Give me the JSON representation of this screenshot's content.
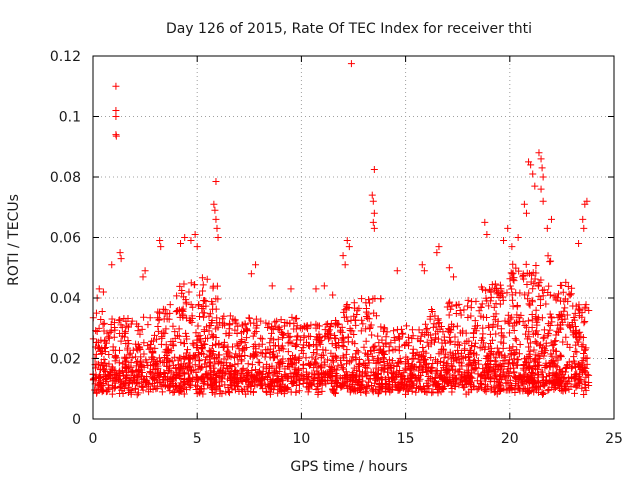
{
  "chart_data": {
    "type": "scatter",
    "title": "Day 126 of 2015, Rate Of TEC Index for receiver thti",
    "xlabel": "GPS time / hours",
    "ylabel": "ROTI / TECUs",
    "xlim": [
      0,
      25
    ],
    "ylim": [
      0,
      0.12
    ],
    "xticks": [
      0,
      5,
      10,
      15,
      20,
      25
    ],
    "yticks": [
      0,
      0.02,
      0.04,
      0.06,
      0.08,
      0.1,
      0.12
    ],
    "xtick_labels": [
      "0",
      "5",
      "10",
      "15",
      "20",
      "25"
    ],
    "ytick_labels": [
      "0",
      "0.02",
      "0.04",
      "0.06",
      "0.08",
      "0.1",
      "0.12"
    ],
    "grid": true,
    "marker": "+",
    "color": "#ff0000",
    "series": [
      {
        "name": "ROTI",
        "points": [
          [
            1.1,
            0.11
          ],
          [
            1.1,
            0.102
          ],
          [
            1.1,
            0.1
          ],
          [
            1.1,
            0.094
          ],
          [
            1.12,
            0.0935
          ],
          [
            12.4,
            0.1175
          ],
          [
            5.9,
            0.0785
          ],
          [
            13.5,
            0.0825
          ],
          [
            13.4,
            0.074
          ],
          [
            13.45,
            0.072
          ],
          [
            13.5,
            0.068
          ],
          [
            13.45,
            0.065
          ],
          [
            13.5,
            0.063
          ],
          [
            5.8,
            0.071
          ],
          [
            5.85,
            0.069
          ],
          [
            5.9,
            0.066
          ],
          [
            5.95,
            0.063
          ],
          [
            6.0,
            0.06
          ],
          [
            20.9,
            0.085
          ],
          [
            21.0,
            0.084
          ],
          [
            21.4,
            0.088
          ],
          [
            21.5,
            0.086
          ],
          [
            21.55,
            0.083
          ],
          [
            21.6,
            0.08
          ],
          [
            21.5,
            0.076
          ],
          [
            21.6,
            0.072
          ],
          [
            21.1,
            0.081
          ],
          [
            21.2,
            0.077
          ],
          [
            20.7,
            0.071
          ],
          [
            20.8,
            0.068
          ],
          [
            20.4,
            0.06
          ],
          [
            21.8,
            0.063
          ],
          [
            22.0,
            0.066
          ],
          [
            23.6,
            0.071
          ],
          [
            23.7,
            0.072
          ],
          [
            23.5,
            0.066
          ],
          [
            23.55,
            0.063
          ],
          [
            23.3,
            0.058
          ],
          [
            18.8,
            0.065
          ],
          [
            18.9,
            0.061
          ],
          [
            19.7,
            0.059
          ],
          [
            19.9,
            0.063
          ],
          [
            20.1,
            0.057
          ],
          [
            4.2,
            0.058
          ],
          [
            4.4,
            0.06
          ],
          [
            4.7,
            0.059
          ],
          [
            4.9,
            0.061
          ],
          [
            5.0,
            0.057
          ],
          [
            3.2,
            0.059
          ],
          [
            3.25,
            0.057
          ],
          [
            1.3,
            0.055
          ],
          [
            1.35,
            0.053
          ],
          [
            0.9,
            0.051
          ],
          [
            12.2,
            0.059
          ],
          [
            12.3,
            0.057
          ],
          [
            12.0,
            0.054
          ],
          [
            12.1,
            0.051
          ],
          [
            7.6,
            0.048
          ],
          [
            7.8,
            0.051
          ],
          [
            8.6,
            0.044
          ],
          [
            9.5,
            0.043
          ],
          [
            16.6,
            0.057
          ],
          [
            16.5,
            0.055
          ],
          [
            17.1,
            0.05
          ],
          [
            17.3,
            0.047
          ],
          [
            15.8,
            0.051
          ],
          [
            15.9,
            0.049
          ],
          [
            14.6,
            0.049
          ],
          [
            10.7,
            0.043
          ],
          [
            11.1,
            0.044
          ],
          [
            11.5,
            0.041
          ],
          [
            2.4,
            0.047
          ],
          [
            2.5,
            0.049
          ],
          [
            0.3,
            0.043
          ],
          [
            0.5,
            0.042
          ],
          [
            0.2,
            0.04
          ]
        ],
        "bands": [
          [
            0,
            1,
            0.007,
            0.036,
            120
          ],
          [
            1,
            2,
            0.005,
            0.035,
            110
          ],
          [
            2,
            3,
            0.006,
            0.034,
            110
          ],
          [
            3,
            4,
            0.006,
            0.038,
            120
          ],
          [
            4,
            5,
            0.006,
            0.045,
            140
          ],
          [
            5,
            6,
            0.005,
            0.047,
            150
          ],
          [
            6,
            7,
            0.004,
            0.036,
            120
          ],
          [
            7,
            8,
            0.005,
            0.034,
            110
          ],
          [
            8,
            9,
            0.006,
            0.033,
            110
          ],
          [
            9,
            10,
            0.006,
            0.034,
            110
          ],
          [
            10,
            11,
            0.006,
            0.032,
            110
          ],
          [
            11,
            12,
            0.006,
            0.033,
            110
          ],
          [
            12,
            13,
            0.005,
            0.04,
            120
          ],
          [
            13,
            14,
            0.005,
            0.04,
            120
          ],
          [
            14,
            15,
            0.004,
            0.03,
            110
          ],
          [
            15,
            16,
            0.005,
            0.032,
            110
          ],
          [
            16,
            17,
            0.005,
            0.037,
            120
          ],
          [
            17,
            18,
            0.005,
            0.04,
            120
          ],
          [
            18,
            19,
            0.005,
            0.044,
            130
          ],
          [
            19,
            20,
            0.006,
            0.046,
            140
          ],
          [
            20,
            21,
            0.006,
            0.052,
            150
          ],
          [
            21,
            22,
            0.006,
            0.055,
            150
          ],
          [
            22,
            23,
            0.006,
            0.046,
            140
          ],
          [
            23,
            23.8,
            0.006,
            0.04,
            100
          ]
        ]
      }
    ]
  }
}
